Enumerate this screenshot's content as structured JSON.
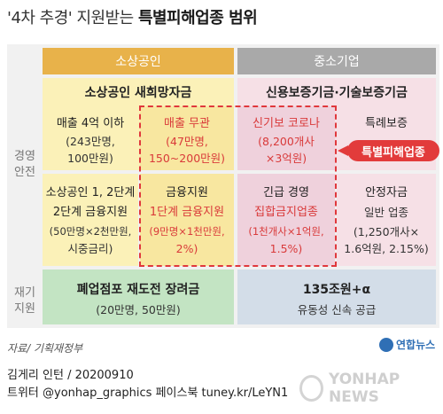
{
  "title": {
    "prefix": "'4차 추경' 지원받는 ",
    "bold": "특별피해업종 범위"
  },
  "headers": {
    "col_a": "소상공인",
    "col_b": "중소기업"
  },
  "rows": {
    "top": "경영\n안전",
    "bottom": "재기\n지원"
  },
  "cells": {
    "r1_head": "소상공인 새희망자금",
    "r1_c1_a": "매출 4억 이하",
    "r1_c1_b": "(243만명,",
    "r1_c1_c": "100만원)",
    "r1_c2_a": "매출 무관",
    "r1_c2_b": "(47만명,",
    "r1_c2_c": "150~200만원)",
    "r1_c3_head": "신용보증기금·기술보증기금",
    "r1_c3_a": "신기보 코로나",
    "r1_c3_b": "(8,200개사",
    "r1_c3_c": "×3억원)",
    "r1_c4_a": "특례보증",
    "r2_c1_a": "소상공인 1, 2단계",
    "r2_c1_b": "2단계 금융지원",
    "r2_c1_c": "(50만명×2천만원,",
    "r2_c1_d": "시중금리)",
    "r2_c2_a": "금융지원",
    "r2_c2_b": "1단계 금융지원",
    "r2_c2_c": "(9만명×1천만원,",
    "r2_c2_d": "2%)",
    "r2_c3_a": "긴급 경영",
    "r2_c3_b": "집합금지업종",
    "r2_c3_c": "(1천개사×1억원,",
    "r2_c3_d": "1.5%)",
    "r2_c4_a": "안정자금",
    "r2_c4_b": "일반 업종",
    "r2_c4_c": "(1,250개사×",
    "r2_c4_d": "1.6억원, 2.15%)",
    "r3_c1_a": "폐업점포 재도전 장려금",
    "r3_c1_b": "(20만명, 50만원)",
    "r3_c2_a": "135조원+α",
    "r3_c2_b": "유동성 신속 공급"
  },
  "badge": "특별피해업종",
  "source": "자료/ 기획재정부",
  "agency": "연합뉴스",
  "credit": "김게리 인턴 / 20200910",
  "social": "트위터 @yonhap_graphics  페이스북 tuney.kr/LeYN1",
  "watermark": "YONHAP NEWS",
  "colors": {
    "header_a": "#e8b24a",
    "header_b": "#a9a9a9",
    "accent_red": "#e23b3b",
    "dash_red": "#e0383c"
  }
}
